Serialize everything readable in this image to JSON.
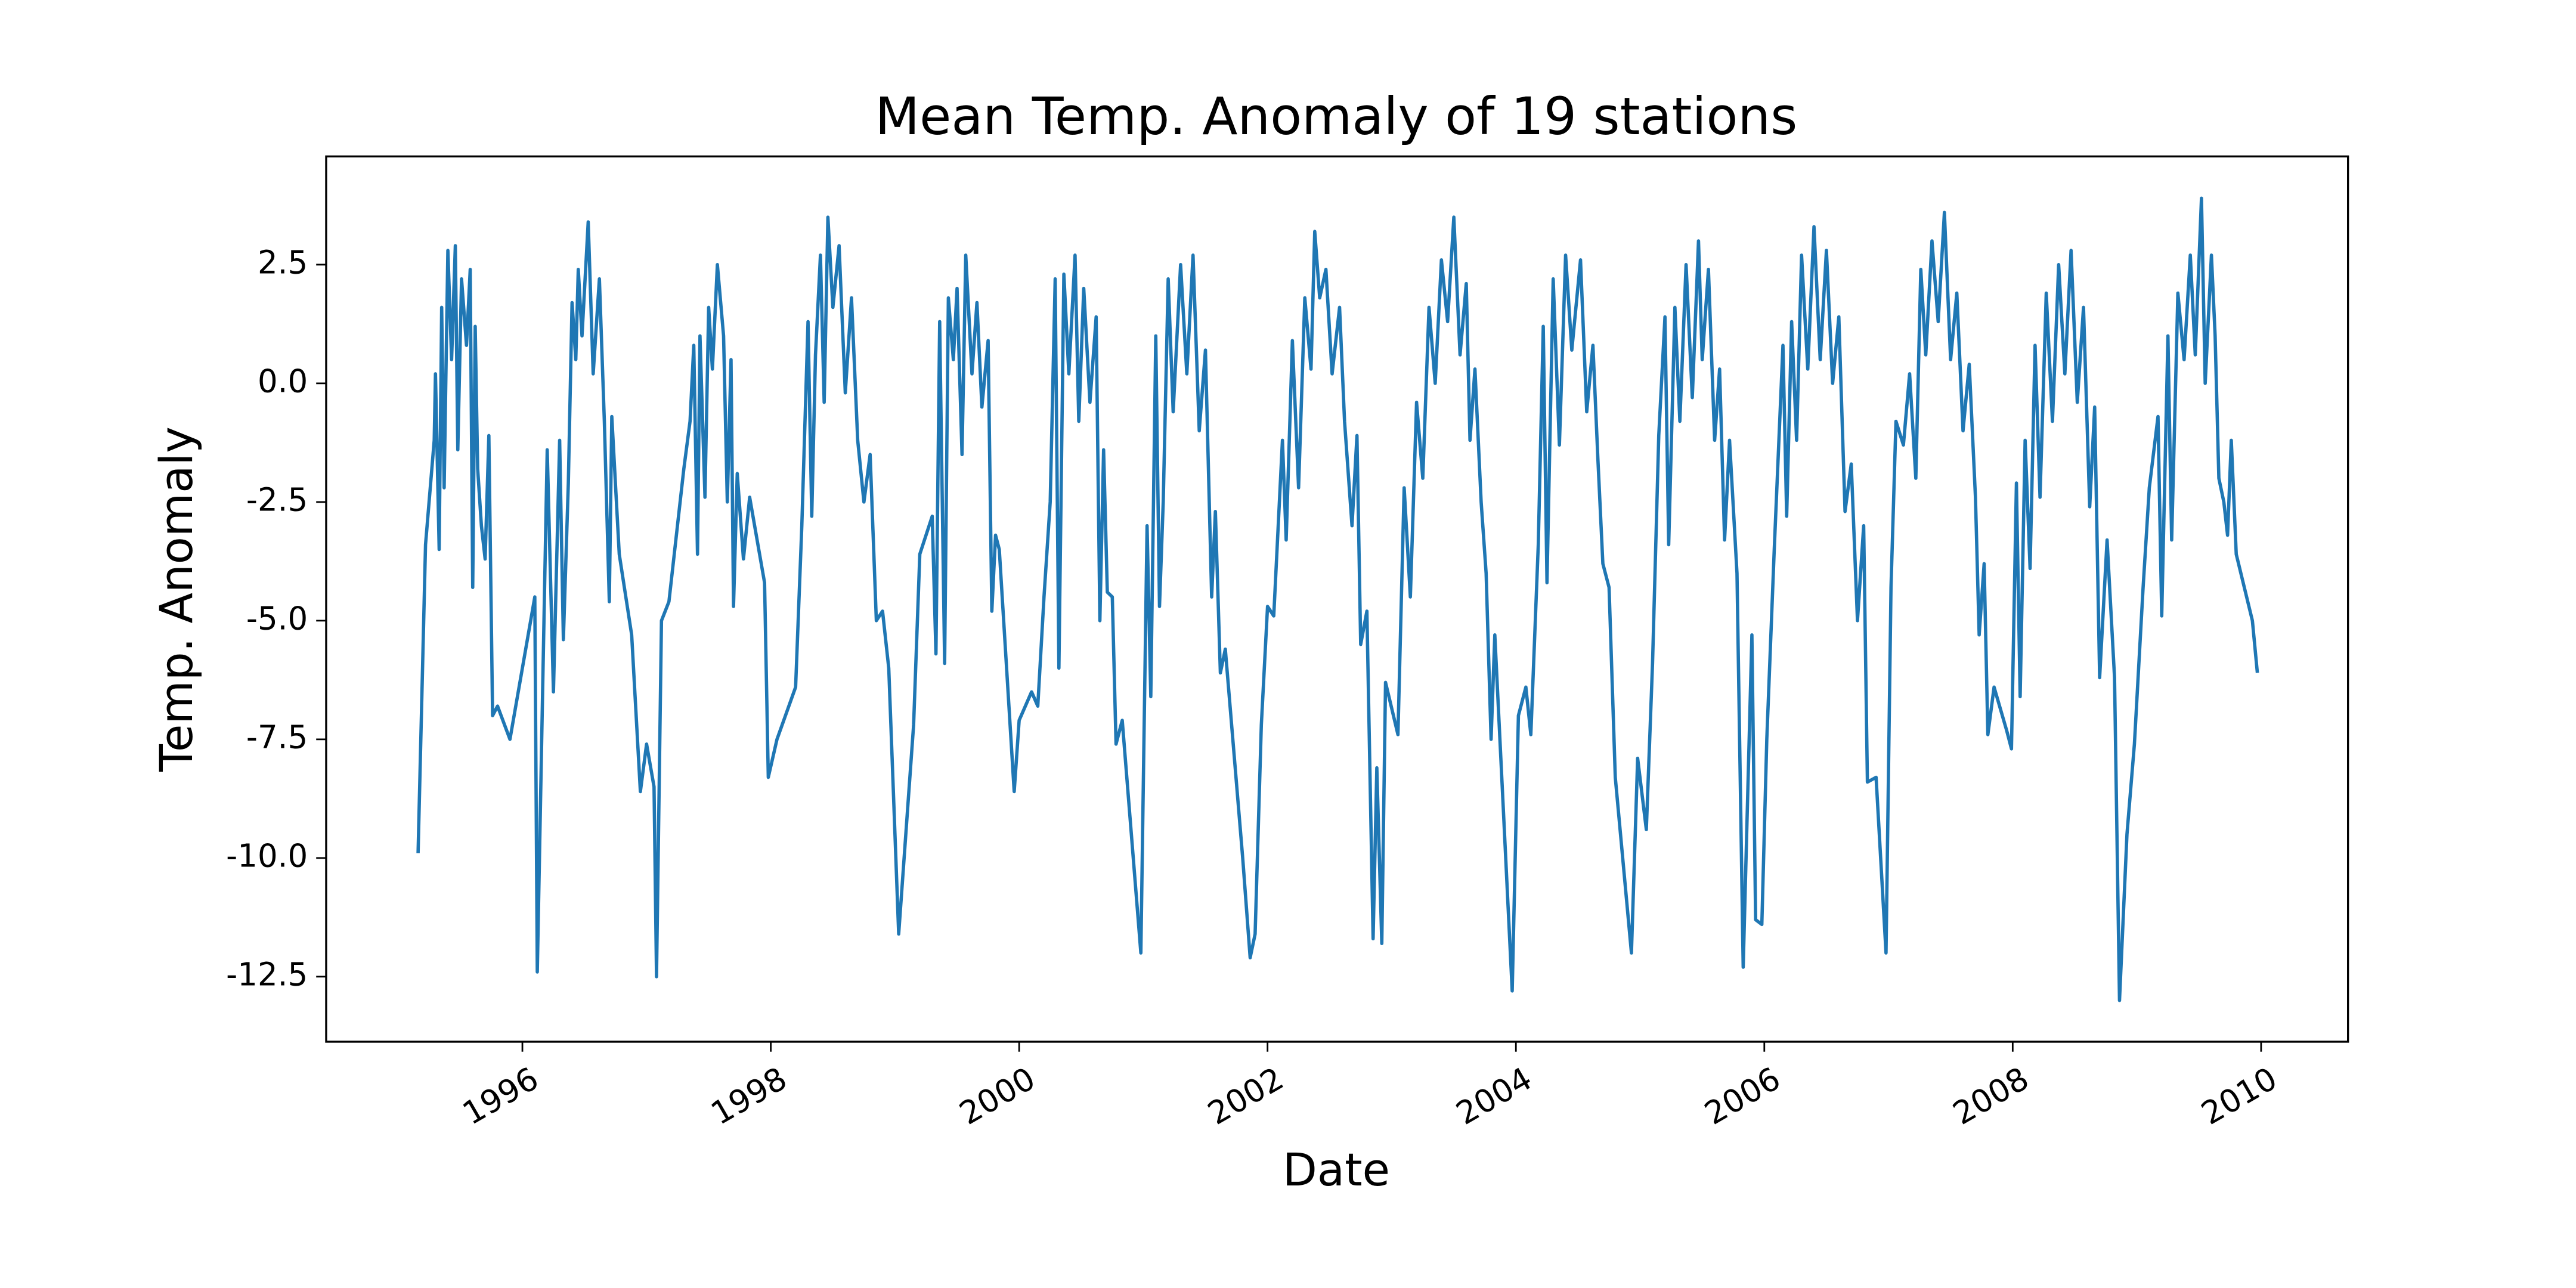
{
  "chart_data": {
    "type": "line",
    "title": "Mean Temp. Anomaly of 19 stations",
    "xlabel": "Date",
    "ylabel": "Temp. Anomaly",
    "color": "#1f77b4",
    "xlim": [
      1994.42,
      2010.7
    ],
    "ylim": [
      -13.87,
      4.78
    ],
    "xticks": [
      1996,
      1998,
      2000,
      2002,
      2004,
      2006,
      2008,
      2010
    ],
    "yticks": [
      2.5,
      {
        "value": 0,
        "label": "0.0"
      },
      -2.5,
      {
        "value": -5,
        "label": "-5.0"
      },
      -7.5,
      {
        "value": -10,
        "label": "-10.0"
      },
      -12.5
    ],
    "x": [
      1995.16,
      1995.22,
      1995.29,
      1995.3,
      1995.33,
      1995.35,
      1995.37,
      1995.4,
      1995.43,
      1995.46,
      1995.48,
      1995.51,
      1995.55,
      1995.58,
      1995.6,
      1995.62,
      1995.64,
      1995.67,
      1995.7,
      1995.73,
      1995.76,
      1995.8,
      1995.9,
      1996.1,
      1996.12,
      1996.2,
      1996.25,
      1996.3,
      1996.33,
      1996.37,
      1996.4,
      1996.43,
      1996.45,
      1996.48,
      1996.53,
      1996.57,
      1996.62,
      1996.66,
      1996.7,
      1996.72,
      1996.78,
      1996.88,
      1996.95,
      1997.0,
      1997.06,
      1997.08,
      1997.12,
      1997.18,
      1997.3,
      1997.35,
      1997.38,
      1997.41,
      1997.43,
      1997.47,
      1997.5,
      1997.53,
      1997.57,
      1997.62,
      1997.65,
      1997.68,
      1997.7,
      1997.73,
      1997.78,
      1997.83,
      1997.95,
      1997.98,
      1998.05,
      1998.2,
      1998.25,
      1998.3,
      1998.33,
      1998.36,
      1998.4,
      1998.43,
      1998.46,
      1998.5,
      1998.55,
      1998.6,
      1998.65,
      1998.7,
      1998.75,
      1998.8,
      1998.85,
      1998.9,
      1998.95,
      1999.03,
      1999.15,
      1999.2,
      1999.3,
      1999.33,
      1999.36,
      1999.4,
      1999.43,
      1999.47,
      1999.5,
      1999.54,
      1999.57,
      1999.62,
      1999.66,
      1999.7,
      1999.75,
      1999.78,
      1999.81,
      1999.84,
      1999.96,
      2000.0,
      2000.1,
      2000.15,
      2000.2,
      2000.25,
      2000.29,
      2000.32,
      2000.36,
      2000.4,
      2000.45,
      2000.48,
      2000.52,
      2000.57,
      2000.62,
      2000.65,
      2000.68,
      2000.71,
      2000.75,
      2000.78,
      2000.83,
      2000.98,
      2001.03,
      2001.06,
      2001.1,
      2001.13,
      2001.16,
      2001.2,
      2001.24,
      2001.3,
      2001.35,
      2001.4,
      2001.45,
      2001.5,
      2001.55,
      2001.58,
      2001.62,
      2001.66,
      2001.8,
      2001.86,
      2001.9,
      2001.95,
      2002.0,
      2002.05,
      2002.12,
      2002.15,
      2002.2,
      2002.25,
      2002.3,
      2002.35,
      2002.38,
      2002.42,
      2002.47,
      2002.52,
      2002.58,
      2002.62,
      2002.68,
      2002.72,
      2002.75,
      2002.8,
      2002.85,
      2002.88,
      2002.92,
      2002.95,
      2003.05,
      2003.1,
      2003.15,
      2003.2,
      2003.25,
      2003.3,
      2003.35,
      2003.4,
      2003.45,
      2003.5,
      2003.55,
      2003.6,
      2003.63,
      2003.67,
      2003.72,
      2003.76,
      2003.8,
      2003.83,
      2003.97,
      2004.02,
      2004.08,
      2004.12,
      2004.18,
      2004.22,
      2004.25,
      2004.3,
      2004.35,
      2004.4,
      2004.45,
      2004.52,
      2004.57,
      2004.62,
      2004.66,
      2004.7,
      2004.75,
      2004.8,
      2004.93,
      2004.98,
      2005.05,
      2005.1,
      2005.15,
      2005.2,
      2005.23,
      2005.28,
      2005.32,
      2005.37,
      2005.42,
      2005.47,
      2005.5,
      2005.55,
      2005.6,
      2005.64,
      2005.68,
      2005.72,
      2005.78,
      2005.83,
      2005.9,
      2005.93,
      2005.98,
      2006.02,
      2006.08,
      2006.15,
      2006.18,
      2006.22,
      2006.26,
      2006.3,
      2006.35,
      2006.4,
      2006.45,
      2006.5,
      2006.55,
      2006.6,
      2006.65,
      2006.7,
      2006.75,
      2006.8,
      2006.83,
      2006.9,
      2006.98,
      2007.02,
      2007.06,
      2007.12,
      2007.17,
      2007.22,
      2007.26,
      2007.3,
      2007.35,
      2007.4,
      2007.45,
      2007.5,
      2007.55,
      2007.6,
      2007.65,
      2007.7,
      2007.73,
      2007.77,
      2007.8,
      2007.85,
      2007.95,
      2007.99,
      2008.03,
      2008.06,
      2008.1,
      2008.14,
      2008.18,
      2008.22,
      2008.27,
      2008.32,
      2008.37,
      2008.42,
      2008.47,
      2008.52,
      2008.57,
      2008.62,
      2008.66,
      2008.7,
      2008.76,
      2008.82,
      2008.86,
      2008.92,
      2008.98,
      2009.05,
      2009.1,
      2009.17,
      2009.2,
      2009.25,
      2009.28,
      2009.33,
      2009.38,
      2009.43,
      2009.47,
      2009.52,
      2009.55,
      2009.6,
      2009.63,
      2009.66,
      2009.7,
      2009.73,
      2009.76,
      2009.8,
      2009.93,
      2009.97
    ],
    "values": [
      -9.9,
      -3.4,
      -1.2,
      0.2,
      -3.5,
      1.6,
      -2.2,
      2.8,
      0.5,
      2.9,
      -1.4,
      2.2,
      0.8,
      2.4,
      -4.3,
      1.2,
      -1.8,
      -3.0,
      -3.7,
      -1.1,
      -7.0,
      -6.8,
      -7.5,
      -4.5,
      -12.4,
      -1.4,
      -6.5,
      -1.2,
      -5.4,
      -2.1,
      1.7,
      0.5,
      2.4,
      1.0,
      3.4,
      0.2,
      2.2,
      -0.8,
      -4.6,
      -0.7,
      -3.6,
      -5.3,
      -8.6,
      -7.6,
      -8.5,
      -12.5,
      -5.0,
      -4.6,
      -1.8,
      -0.8,
      0.8,
      -3.6,
      1.0,
      -2.4,
      1.6,
      0.3,
      2.5,
      1.0,
      -2.5,
      0.5,
      -4.7,
      -1.9,
      -3.7,
      -2.4,
      -4.2,
      -8.3,
      -7.5,
      -6.4,
      -3.0,
      1.3,
      -2.8,
      0.6,
      2.7,
      -0.4,
      3.5,
      1.6,
      2.9,
      -0.2,
      1.8,
      -1.2,
      -2.5,
      -1.5,
      -5.0,
      -4.8,
      -6.0,
      -11.6,
      -7.2,
      -3.6,
      -2.8,
      -5.7,
      1.3,
      -5.9,
      1.8,
      0.5,
      2.0,
      -1.5,
      2.7,
      0.2,
      1.7,
      -0.5,
      0.9,
      -4.8,
      -3.2,
      -3.5,
      -8.6,
      -7.1,
      -6.5,
      -6.8,
      -4.5,
      -2.5,
      2.2,
      -6.0,
      2.3,
      0.2,
      2.7,
      -0.8,
      2.0,
      -0.4,
      1.4,
      -5.0,
      -1.4,
      -4.4,
      -4.5,
      -7.6,
      -7.1,
      -12.0,
      -3.0,
      -6.6,
      1.0,
      -4.7,
      -2.5,
      2.2,
      -0.6,
      2.5,
      0.2,
      2.7,
      -1.0,
      0.7,
      -4.5,
      -2.7,
      -6.1,
      -5.6,
      -10.0,
      -12.1,
      -11.6,
      -7.2,
      -4.7,
      -4.9,
      -1.2,
      -3.3,
      0.9,
      -2.2,
      1.8,
      0.3,
      3.2,
      1.8,
      2.4,
      0.2,
      1.6,
      -0.8,
      -3.0,
      -1.1,
      -5.5,
      -4.8,
      -11.7,
      -8.1,
      -11.8,
      -6.3,
      -7.4,
      -2.2,
      -4.5,
      -0.4,
      -2.0,
      1.6,
      0.0,
      2.6,
      1.3,
      3.5,
      0.6,
      2.1,
      -1.2,
      0.3,
      -2.5,
      -4.0,
      -7.5,
      -5.3,
      -12.8,
      -7.0,
      -6.4,
      -7.4,
      -3.4,
      1.2,
      -4.2,
      2.2,
      -1.3,
      2.7,
      0.7,
      2.6,
      -0.6,
      0.8,
      -1.6,
      -3.8,
      -4.3,
      -8.3,
      -12.0,
      -7.9,
      -9.4,
      -5.9,
      -1.1,
      1.4,
      -3.4,
      1.6,
      -0.8,
      2.5,
      -0.3,
      3.0,
      0.5,
      2.4,
      -1.2,
      0.3,
      -3.3,
      -1.2,
      -4.0,
      -12.3,
      -5.3,
      -11.3,
      -11.4,
      -7.5,
      -3.5,
      0.8,
      -2.8,
      1.3,
      -1.2,
      2.7,
      0.3,
      3.3,
      0.5,
      2.8,
      0.0,
      1.4,
      -2.7,
      -1.7,
      -5.0,
      -3.0,
      -8.4,
      -8.3,
      -12.0,
      -4.3,
      -0.8,
      -1.3,
      0.2,
      -2.0,
      2.4,
      0.6,
      3.0,
      1.3,
      3.6,
      0.5,
      1.9,
      -1.0,
      0.4,
      -2.4,
      -5.3,
      -3.8,
      -7.4,
      -6.4,
      -7.3,
      -7.7,
      -2.1,
      -6.6,
      -1.2,
      -3.9,
      0.8,
      -2.4,
      1.9,
      -0.8,
      2.5,
      0.2,
      2.8,
      -0.4,
      1.6,
      -2.6,
      -0.5,
      -6.2,
      -3.3,
      -6.2,
      -13.0,
      -9.5,
      -7.6,
      -4.3,
      -2.2,
      -0.7,
      -4.9,
      1.0,
      -3.3,
      1.9,
      0.5,
      2.7,
      0.6,
      3.9,
      0.0,
      2.7,
      1.0,
      -2.0,
      -2.5,
      -3.2,
      -1.2,
      -3.6,
      -5.0,
      -6.1
    ]
  }
}
